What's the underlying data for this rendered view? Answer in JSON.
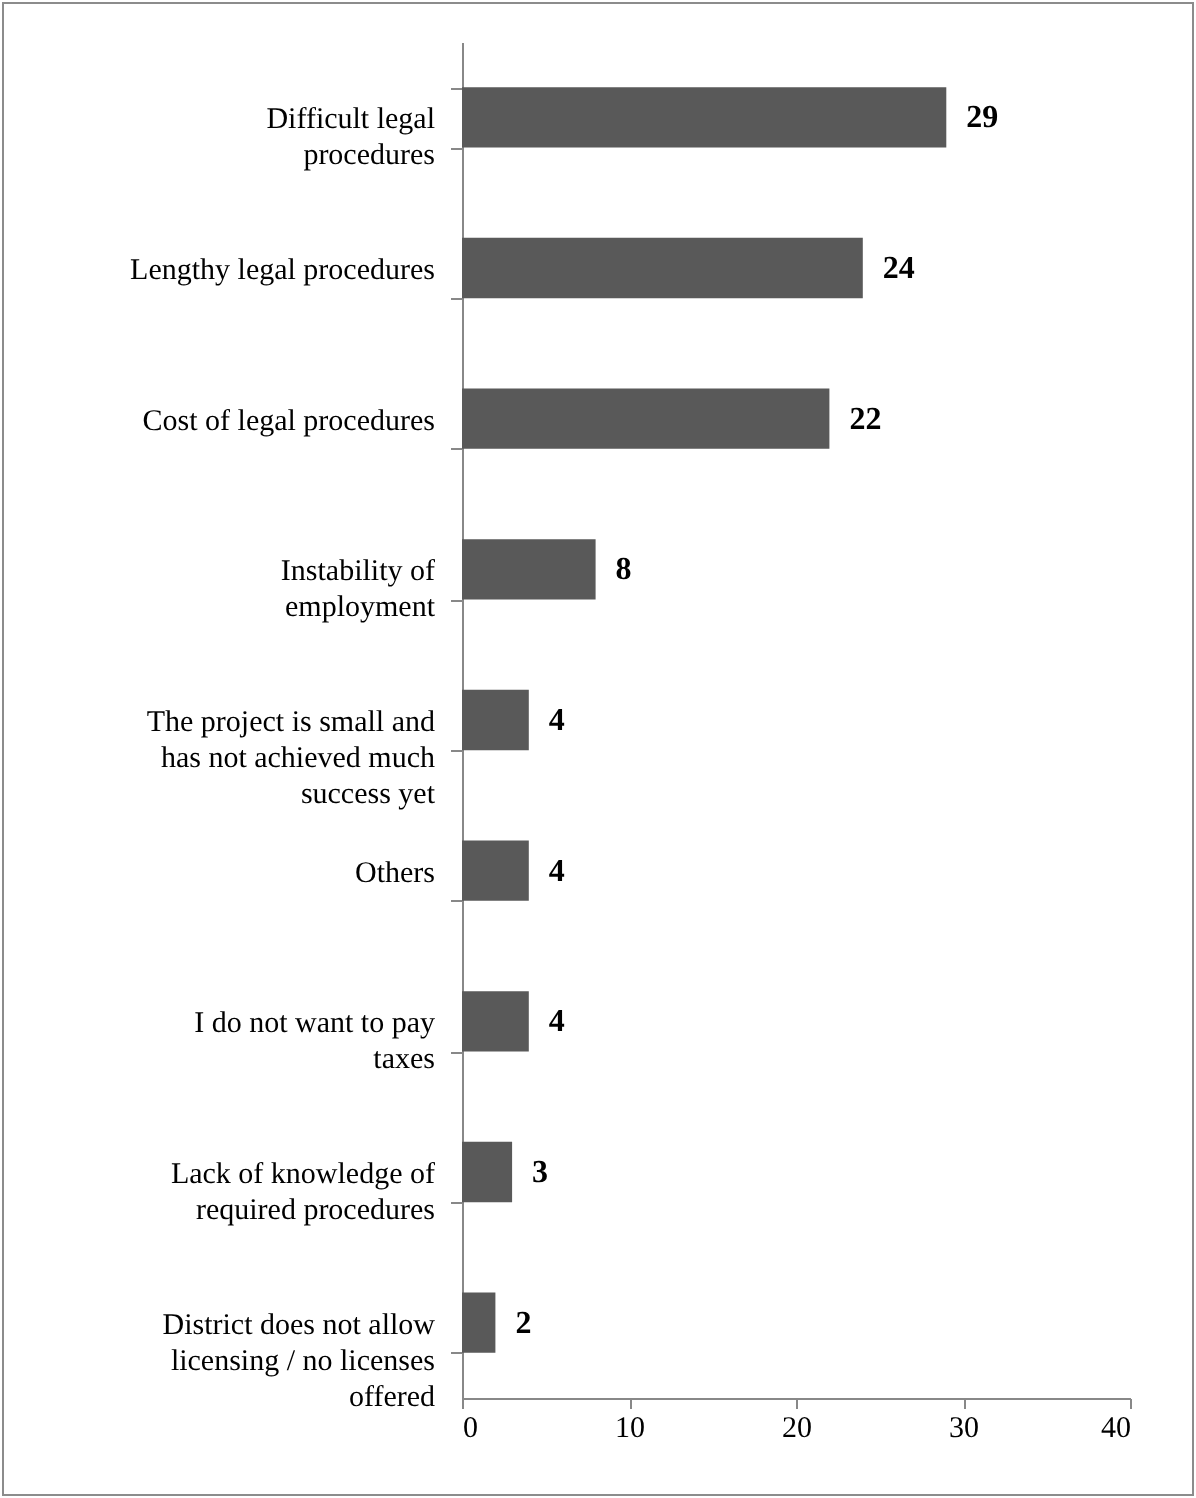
{
  "chart_data": {
    "type": "bar",
    "orientation": "horizontal",
    "categories": [
      "Difficult legal procedures",
      "Lengthy legal procedures",
      "Cost of legal procedures",
      "Instability of employment",
      "The project is small and has not achieved much success yet",
      "Others",
      "I do not want to pay taxes",
      "Lack of knowledge of required procedures",
      "District does not allow licensing / no licenses offered"
    ],
    "values": [
      29,
      24,
      22,
      8,
      4,
      4,
      4,
      3,
      2
    ],
    "color": "#595959",
    "xlim": [
      0,
      40
    ],
    "xticks": [
      0,
      10,
      20,
      30,
      40
    ],
    "data_labels": true,
    "grid": false
  }
}
